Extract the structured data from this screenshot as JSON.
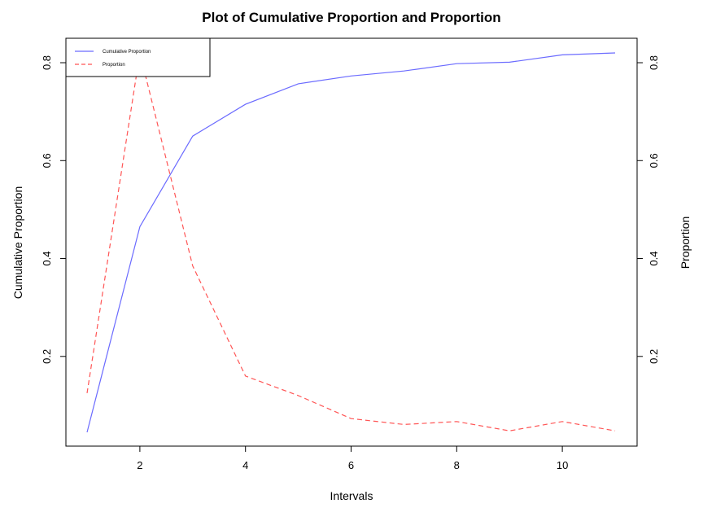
{
  "chart_data": {
    "type": "line",
    "title": "Plot of Cumulative Proportion and Proportion",
    "xlabel": "Intervals",
    "ylabel": "Cumulative Proportion",
    "ylabel_right": "Proportion",
    "x": [
      1,
      2,
      3,
      4,
      5,
      6,
      7,
      8,
      9,
      10,
      11
    ],
    "xlim": [
      1,
      11
    ],
    "ylim": [
      0.045,
      0.82
    ],
    "ylim_right": [
      0.045,
      0.82
    ],
    "x_ticks": [
      2,
      4,
      6,
      8,
      10
    ],
    "y_ticks": [
      0.2,
      0.4,
      0.6,
      0.8
    ],
    "y_ticks_right": [
      0.2,
      0.4,
      0.6,
      0.8
    ],
    "grid": false,
    "legend_position": "top-left",
    "series": [
      {
        "name": "Cumulative Proportion",
        "axis": "left",
        "color": "#6b6bff",
        "dash": "solid",
        "values": [
          0.045,
          0.465,
          0.65,
          0.715,
          0.757,
          0.773,
          0.783,
          0.798,
          0.801,
          0.816,
          0.82
        ]
      },
      {
        "name": "Proportion",
        "axis": "right",
        "color": "#ff5555",
        "dash": "dashed",
        "values": [
          0.125,
          0.82,
          0.385,
          0.16,
          0.12,
          0.073,
          0.061,
          0.067,
          0.048,
          0.067,
          0.048
        ]
      }
    ]
  }
}
